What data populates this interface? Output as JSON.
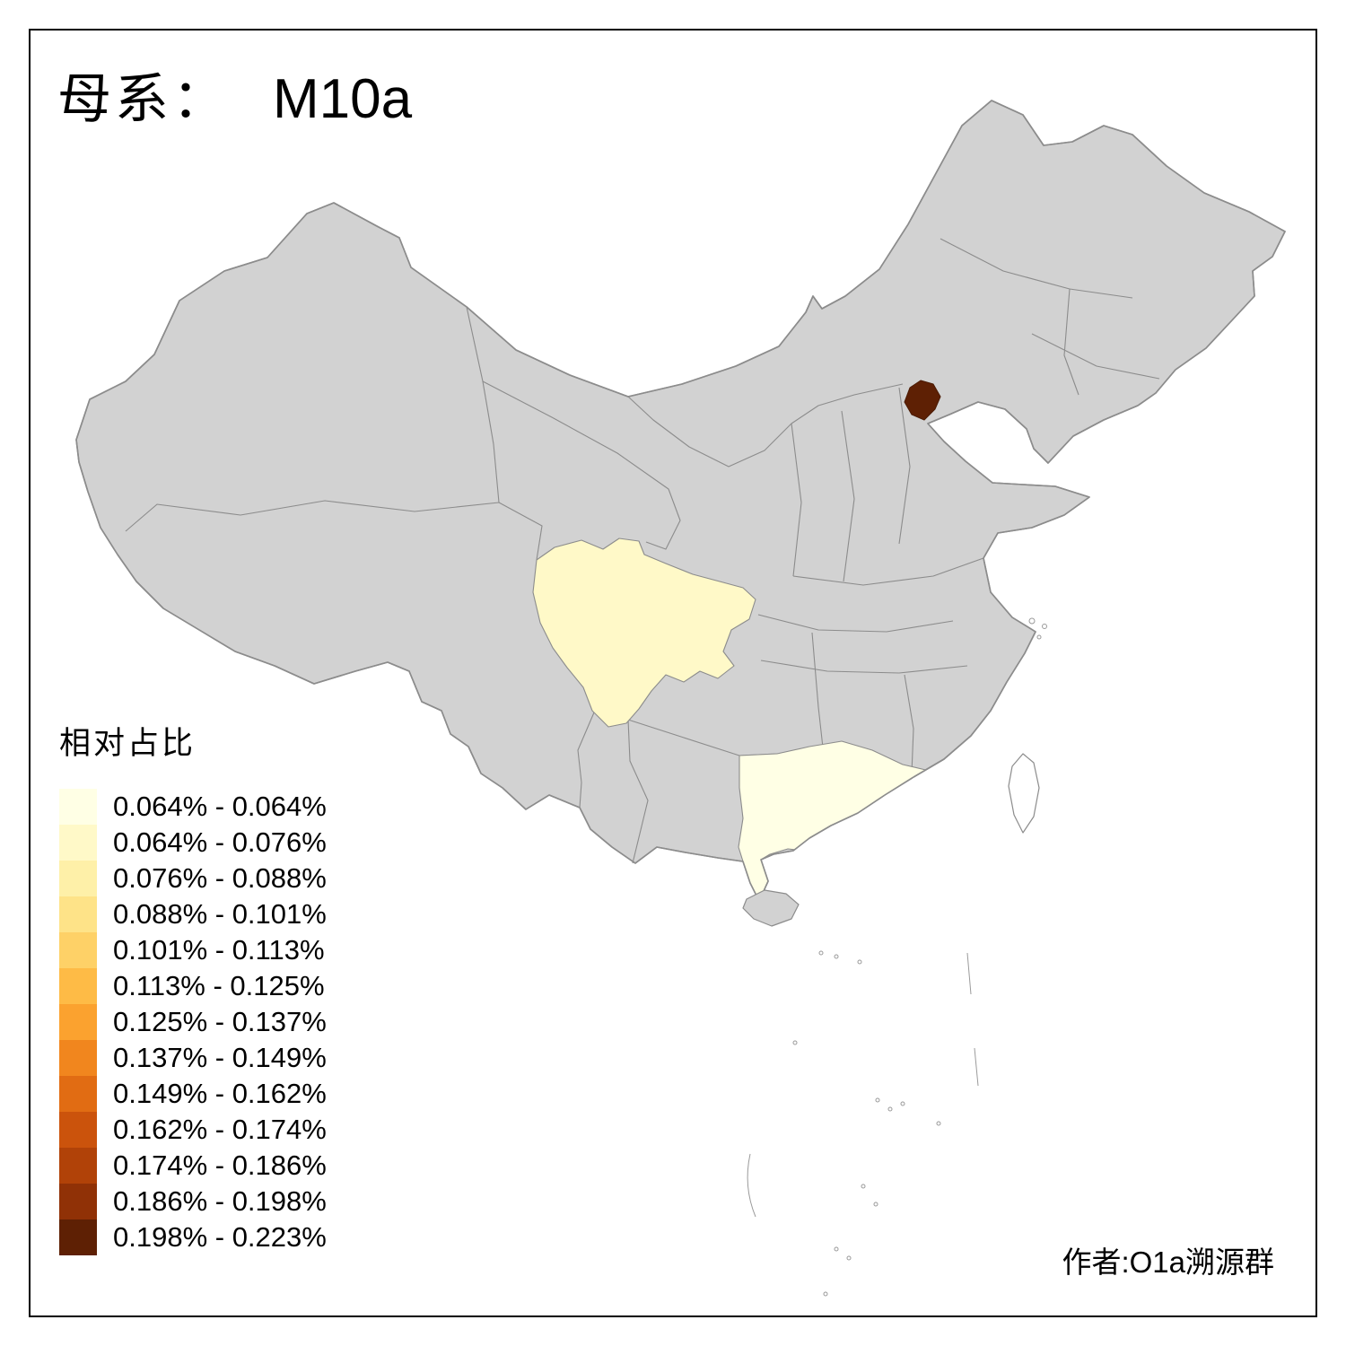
{
  "title": {
    "prefix": "母系：",
    "value": "M10a"
  },
  "legend": {
    "title": "相对占比",
    "bins": [
      {
        "label": "0.064% - 0.064%",
        "color": "#FFFFE5"
      },
      {
        "label": "0.064% - 0.076%",
        "color": "#FFF9C8"
      },
      {
        "label": "0.076% - 0.088%",
        "color": "#FEF0A8"
      },
      {
        "label": "0.088% - 0.101%",
        "color": "#FEE388"
      },
      {
        "label": "0.101% - 0.113%",
        "color": "#FED167"
      },
      {
        "label": "0.113% - 0.125%",
        "color": "#FEBB46"
      },
      {
        "label": "0.125% - 0.137%",
        "color": "#FBA22F"
      },
      {
        "label": "0.137% - 0.149%",
        "color": "#F1861E"
      },
      {
        "label": "0.149% - 0.162%",
        "color": "#E16C13"
      },
      {
        "label": "0.162% - 0.174%",
        "color": "#CB530C"
      },
      {
        "label": "0.174% - 0.186%",
        "color": "#B14208"
      },
      {
        "label": "0.186% - 0.198%",
        "color": "#903106"
      },
      {
        "label": "0.198% - 0.223%",
        "color": "#5E2004"
      }
    ]
  },
  "footer": {
    "credit": "作者:O1a溯源群"
  },
  "map": {
    "base_fill": "#D2D2D2",
    "stroke": "#8C8C8C",
    "sea_fill": "#FFFFFF",
    "regions": [
      {
        "name": "Guangdong",
        "bin": "0.064% - 0.064%",
        "color": "#FFFFE5"
      },
      {
        "name": "Sichuan",
        "bin": "0.064% - 0.076%",
        "color": "#FFF9C8"
      },
      {
        "name": "Beijing",
        "bin": "0.198% - 0.223%",
        "color": "#5E2004"
      }
    ]
  }
}
